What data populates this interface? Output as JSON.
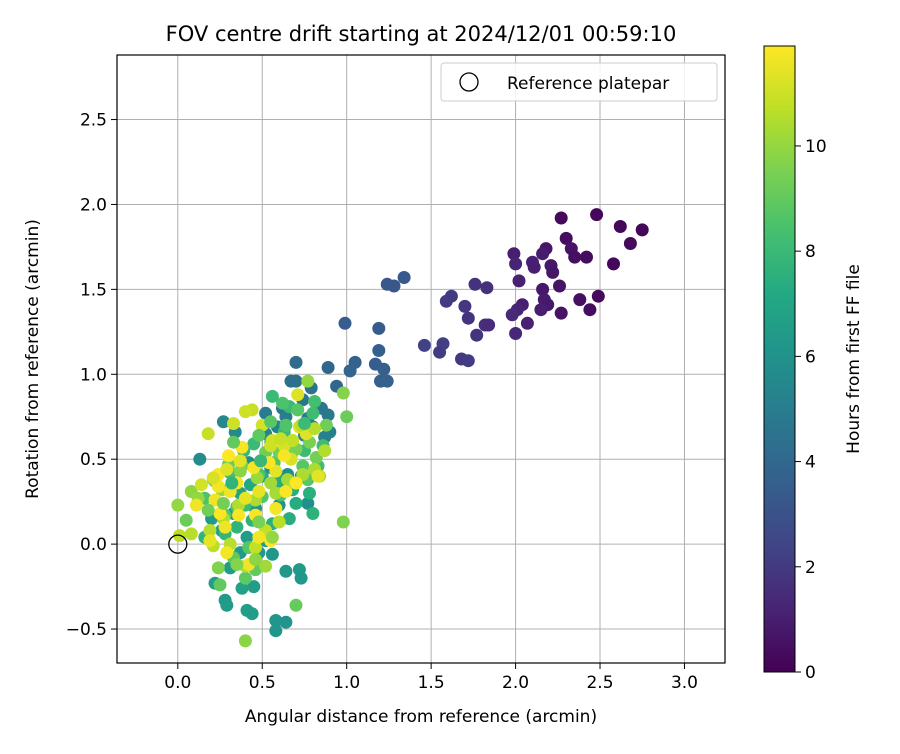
{
  "chart_data": {
    "type": "scatter",
    "title": "FOV centre drift starting at 2024/12/01 00:59:10",
    "xlabel": "Angular distance from reference (arcmin)",
    "ylabel": "Rotation from reference (arcmin)",
    "xlim": [
      -0.36,
      3.24
    ],
    "ylim": [
      -0.7,
      2.88
    ],
    "xticks": [
      0.0,
      0.5,
      1.0,
      1.5,
      2.0,
      2.5,
      3.0
    ],
    "xtick_labels": [
      "0.0",
      "0.5",
      "1.0",
      "1.5",
      "2.0",
      "2.5",
      "3.0"
    ],
    "yticks": [
      -0.5,
      0.0,
      0.5,
      1.0,
      1.5,
      2.0,
      2.5
    ],
    "ytick_labels": [
      "−0.5",
      "0.0",
      "0.5",
      "1.0",
      "1.5",
      "2.0",
      "2.5"
    ],
    "grid": true,
    "legend": {
      "placement": "top-right",
      "entries": [
        "Reference platepar"
      ]
    },
    "reference_point": {
      "x": 0.0,
      "y": 0.0,
      "label": "Reference platepar"
    },
    "colorbar": {
      "label": "Hours from first FF file",
      "range": [
        0,
        11.9
      ],
      "ticks": [
        0,
        2,
        4,
        6,
        8,
        10
      ],
      "tick_labels": [
        "0",
        "2",
        "4",
        "6",
        "8",
        "10"
      ],
      "colormap": "viridis"
    },
    "points": [
      [
        2.48,
        1.94,
        0.2
      ],
      [
        2.27,
        1.92,
        0.3
      ],
      [
        2.62,
        1.87,
        0.2
      ],
      [
        2.75,
        1.85,
        0.2
      ],
      [
        2.3,
        1.8,
        0.4
      ],
      [
        2.68,
        1.77,
        0.3
      ],
      [
        2.33,
        1.74,
        0.6
      ],
      [
        2.18,
        1.74,
        0.7
      ],
      [
        2.16,
        1.71,
        0.9
      ],
      [
        1.99,
        1.71,
        1.0
      ],
      [
        2.35,
        1.69,
        0.5
      ],
      [
        2.42,
        1.69,
        0.4
      ],
      [
        2.1,
        1.66,
        1.1
      ],
      [
        2.58,
        1.65,
        0.2
      ],
      [
        2.0,
        1.65,
        1.2
      ],
      [
        2.21,
        1.64,
        0.8
      ],
      [
        2.11,
        1.63,
        1.0
      ],
      [
        2.22,
        1.6,
        0.7
      ],
      [
        2.02,
        1.55,
        1.1
      ],
      [
        2.26,
        1.52,
        0.6
      ],
      [
        2.16,
        1.5,
        0.8
      ],
      [
        2.49,
        1.46,
        0.3
      ],
      [
        2.38,
        1.44,
        0.5
      ],
      [
        2.17,
        1.44,
        0.9
      ],
      [
        2.04,
        1.41,
        1.0
      ],
      [
        2.19,
        1.41,
        0.8
      ],
      [
        2.15,
        1.38,
        1.0
      ],
      [
        2.44,
        1.38,
        0.4
      ],
      [
        2.01,
        1.38,
        1.2
      ],
      [
        2.27,
        1.36,
        0.6
      ],
      [
        1.98,
        1.35,
        1.4
      ],
      [
        2.07,
        1.3,
        1.1
      ],
      [
        2.0,
        1.24,
        1.3
      ],
      [
        1.82,
        1.29,
        1.6
      ],
      [
        1.84,
        1.29,
        1.5
      ],
      [
        1.77,
        1.23,
        1.8
      ],
      [
        1.76,
        1.53,
        1.7
      ],
      [
        1.83,
        1.51,
        1.6
      ],
      [
        1.62,
        1.46,
        2.0
      ],
      [
        1.59,
        1.43,
        2.1
      ],
      [
        1.7,
        1.4,
        1.9
      ],
      [
        1.72,
        1.33,
        1.8
      ],
      [
        1.46,
        1.17,
        2.3
      ],
      [
        1.57,
        1.18,
        2.2
      ],
      [
        1.55,
        1.13,
        2.1
      ],
      [
        1.68,
        1.09,
        2.0
      ],
      [
        1.72,
        1.08,
        2.1
      ],
      [
        1.34,
        1.57,
        3.3
      ],
      [
        1.24,
        1.53,
        3.2
      ],
      [
        1.28,
        1.52,
        3.2
      ],
      [
        0.99,
        1.3,
        3.5
      ],
      [
        1.19,
        1.27,
        3.4
      ],
      [
        1.19,
        1.14,
        3.6
      ],
      [
        1.05,
        1.07,
        3.7
      ],
      [
        1.17,
        1.06,
        3.5
      ],
      [
        1.22,
        1.03,
        3.6
      ],
      [
        1.02,
        1.02,
        3.8
      ],
      [
        1.2,
        0.96,
        3.6
      ],
      [
        1.24,
        0.96,
        3.7
      ],
      [
        0.94,
        0.93,
        3.9
      ],
      [
        0.89,
        1.04,
        3.9
      ],
      [
        0.7,
        1.07,
        4.2
      ],
      [
        0.67,
        0.96,
        4.3
      ],
      [
        0.7,
        0.96,
        4.4
      ],
      [
        0.79,
        0.92,
        4.5
      ],
      [
        0.74,
        0.85,
        4.6
      ],
      [
        0.85,
        0.8,
        4.6
      ],
      [
        0.89,
        0.76,
        4.7
      ],
      [
        0.62,
        0.8,
        4.8
      ],
      [
        0.52,
        0.77,
        4.9
      ],
      [
        0.64,
        0.75,
        5.0
      ],
      [
        0.77,
        0.74,
        5.0
      ],
      [
        0.8,
        0.69,
        5.1
      ],
      [
        0.9,
        0.66,
        5.2
      ],
      [
        0.27,
        0.72,
        5.5
      ],
      [
        0.59,
        0.69,
        5.3
      ],
      [
        0.75,
        0.64,
        5.3
      ],
      [
        0.87,
        0.63,
        5.2
      ],
      [
        0.34,
        0.66,
        5.6
      ],
      [
        0.52,
        0.65,
        5.4
      ],
      [
        0.13,
        0.5,
        5.7
      ],
      [
        0.42,
        0.48,
        5.8
      ],
      [
        0.55,
        0.45,
        5.9
      ],
      [
        0.65,
        0.41,
        5.8
      ],
      [
        0.73,
        0.4,
        6.0
      ],
      [
        0.77,
        0.24,
        5.9
      ],
      [
        0.6,
        0.23,
        6.1
      ],
      [
        0.46,
        0.21,
        6.2
      ],
      [
        0.33,
        0.18,
        6.3
      ],
      [
        0.2,
        0.15,
        6.4
      ],
      [
        0.26,
        0.08,
        6.5
      ],
      [
        0.41,
        0.04,
        6.5
      ],
      [
        0.52,
        0.02,
        6.6
      ],
      [
        0.37,
        -0.05,
        6.4
      ],
      [
        0.48,
        -0.05,
        6.3
      ],
      [
        0.56,
        -0.06,
        6.2
      ],
      [
        0.31,
        -0.14,
        6.5
      ],
      [
        0.22,
        -0.23,
        6.6
      ],
      [
        0.28,
        -0.33,
        6.4
      ],
      [
        0.29,
        -0.36,
        6.5
      ],
      [
        0.41,
        -0.39,
        6.7
      ],
      [
        0.44,
        -0.41,
        6.6
      ],
      [
        0.38,
        -0.26,
        6.8
      ],
      [
        0.45,
        -0.25,
        6.6
      ],
      [
        0.64,
        -0.16,
        6.3
      ],
      [
        0.72,
        -0.15,
        6.4
      ],
      [
        0.73,
        -0.2,
        6.3
      ],
      [
        0.58,
        -0.45,
        6.2
      ],
      [
        0.64,
        -0.46,
        6.1
      ],
      [
        0.58,
        -0.51,
        6.2
      ],
      [
        0.37,
        0.3,
        6.9
      ],
      [
        0.43,
        0.35,
        7.1
      ],
      [
        0.5,
        0.4,
        7.2
      ],
      [
        0.6,
        0.37,
        7.3
      ],
      [
        0.68,
        0.32,
        7.4
      ],
      [
        0.78,
        0.3,
        7.5
      ],
      [
        0.7,
        0.24,
        7.3
      ],
      [
        0.66,
        0.15,
        7.4
      ],
      [
        0.8,
        0.18,
        7.6
      ],
      [
        0.56,
        0.12,
        7.5
      ],
      [
        0.44,
        0.14,
        7.6
      ],
      [
        0.35,
        0.1,
        7.7
      ],
      [
        0.28,
        0.06,
        7.8
      ],
      [
        0.16,
        0.04,
        7.7
      ],
      [
        0.39,
        0.55,
        7.9
      ],
      [
        0.45,
        0.59,
        8.0
      ],
      [
        0.55,
        0.6,
        8.1
      ],
      [
        0.63,
        0.66,
        8.0
      ],
      [
        0.66,
        0.81,
        8.0
      ],
      [
        0.56,
        0.87,
        8.0
      ],
      [
        0.75,
        0.55,
        8.1
      ],
      [
        0.86,
        0.58,
        8.2
      ],
      [
        0.83,
        0.46,
        8.2
      ],
      [
        0.4,
        0.23,
        8.1
      ],
      [
        0.31,
        0.42,
        8.3
      ],
      [
        0.22,
        0.37,
        8.4
      ],
      [
        0.16,
        0.27,
        8.5
      ],
      [
        0.48,
        0.41,
        8.5
      ],
      [
        0.57,
        0.48,
        8.6
      ],
      [
        0.67,
        0.52,
        8.6
      ],
      [
        0.74,
        0.46,
        8.7
      ],
      [
        0.77,
        0.38,
        8.8
      ],
      [
        0.5,
        0.28,
        8.7
      ],
      [
        0.61,
        0.29,
        8.6
      ],
      [
        0.35,
        0.22,
        8.6
      ],
      [
        0.28,
        0.17,
        8.7
      ],
      [
        0.42,
        -0.02,
        8.8
      ],
      [
        0.33,
        -0.08,
        8.9
      ],
      [
        0.46,
        -0.15,
        9.0
      ],
      [
        0.4,
        -0.2,
        8.9
      ],
      [
        0.25,
        -0.24,
        9.0
      ],
      [
        0.7,
        -0.36,
        9.1
      ],
      [
        0.3,
        0.47,
        9.2
      ],
      [
        0.38,
        0.46,
        9.3
      ],
      [
        0.52,
        0.54,
        9.3
      ],
      [
        0.6,
        0.54,
        9.4
      ],
      [
        0.7,
        0.56,
        9.5
      ],
      [
        0.78,
        0.6,
        9.5
      ],
      [
        0.82,
        0.51,
        9.4
      ],
      [
        0.88,
        0.7,
        9.3
      ],
      [
        1.0,
        0.75,
        9.2
      ],
      [
        0.98,
        0.13,
        9.6
      ],
      [
        0.98,
        0.89,
        9.7
      ],
      [
        0.77,
        0.96,
        10.0
      ],
      [
        0.63,
        0.53,
        9.6
      ],
      [
        0.49,
        0.49,
        9.7
      ],
      [
        0.37,
        0.43,
        9.8
      ],
      [
        0.21,
        0.38,
        9.8
      ],
      [
        0.08,
        0.31,
        9.9
      ],
      [
        0.0,
        0.23,
        10.0
      ],
      [
        0.12,
        0.27,
        10.0
      ],
      [
        0.26,
        0.32,
        10.1
      ],
      [
        0.4,
        -0.57,
        9.8
      ],
      [
        0.47,
        0.39,
        10.1
      ],
      [
        0.55,
        0.36,
        10.2
      ],
      [
        0.65,
        0.38,
        10.3
      ],
      [
        0.74,
        0.41,
        10.4
      ],
      [
        0.81,
        0.44,
        10.4
      ],
      [
        0.84,
        0.4,
        10.5
      ],
      [
        0.58,
        0.3,
        10.3
      ],
      [
        0.46,
        0.26,
        10.4
      ],
      [
        0.36,
        0.23,
        10.5
      ],
      [
        0.27,
        0.15,
        10.5
      ],
      [
        0.19,
        0.08,
        10.6
      ],
      [
        0.08,
        0.06,
        10.6
      ],
      [
        0.01,
        0.05,
        10.7
      ],
      [
        0.21,
        -0.01,
        10.7
      ],
      [
        0.31,
        0.0,
        10.6
      ],
      [
        0.4,
        -0.13,
        10.5
      ],
      [
        0.46,
        -0.02,
        10.8
      ],
      [
        0.52,
        0.08,
        10.8
      ],
      [
        0.6,
        0.13,
        10.7
      ],
      [
        0.44,
        0.79,
        10.9
      ],
      [
        0.4,
        0.78,
        11.0
      ],
      [
        0.33,
        0.71,
        11.0
      ],
      [
        0.18,
        0.65,
        10.9
      ],
      [
        0.5,
        0.7,
        11.1
      ],
      [
        0.56,
        0.61,
        11.1
      ],
      [
        0.63,
        0.58,
        11.2
      ],
      [
        0.67,
        0.5,
        11.2
      ],
      [
        0.76,
        0.65,
        11.3
      ],
      [
        0.72,
        0.69,
        11.3
      ],
      [
        0.71,
        0.88,
        11.3
      ],
      [
        0.83,
        0.4,
        11.4
      ],
      [
        0.58,
        0.43,
        11.4
      ],
      [
        0.48,
        0.31,
        11.5
      ],
      [
        0.4,
        0.27,
        11.5
      ],
      [
        0.31,
        0.31,
        11.6
      ],
      [
        0.22,
        0.26,
        11.6
      ],
      [
        0.11,
        0.23,
        11.6
      ],
      [
        0.24,
        0.34,
        11.7
      ],
      [
        0.35,
        0.36,
        11.7
      ],
      [
        0.45,
        0.45,
        11.7
      ],
      [
        0.54,
        0.48,
        11.8
      ],
      [
        0.63,
        0.52,
        11.8
      ],
      [
        0.38,
        0.57,
        11.8
      ],
      [
        0.3,
        0.52,
        11.9
      ],
      [
        0.24,
        0.41,
        11.9
      ],
      [
        0.25,
        0.18,
        11.9
      ],
      [
        0.36,
        0.17,
        11.8
      ],
      [
        0.46,
        0.17,
        11.8
      ],
      [
        0.58,
        0.21,
        11.7
      ],
      [
        0.64,
        0.31,
        11.8
      ],
      [
        0.7,
        0.36,
        11.9
      ],
      [
        0.55,
        0.02,
        11.9
      ],
      [
        0.48,
        0.04,
        11.7
      ],
      [
        0.28,
        0.1,
        11.6
      ],
      [
        0.19,
        0.02,
        11.5
      ],
      [
        0.29,
        -0.05,
        11.7
      ],
      [
        0.42,
        -0.12,
        11.6
      ],
      [
        0.37,
        0.49,
        11.4
      ],
      [
        0.29,
        0.44,
        11.3
      ],
      [
        0.21,
        0.39,
        11.2
      ],
      [
        0.14,
        0.35,
        11.1
      ],
      [
        0.55,
        0.58,
        11.0
      ],
      [
        0.61,
        0.62,
        10.9
      ],
      [
        0.68,
        0.61,
        10.8
      ],
      [
        0.73,
        0.7,
        10.7
      ],
      [
        0.81,
        0.68,
        10.6
      ],
      [
        0.87,
        0.55,
        10.5
      ],
      [
        0.52,
        -0.13,
        10.2
      ],
      [
        0.56,
        0.04,
        10.0
      ],
      [
        0.46,
        -0.09,
        9.9
      ],
      [
        0.35,
        -0.12,
        9.7
      ],
      [
        0.24,
        -0.14,
        9.6
      ],
      [
        0.48,
        0.13,
        9.5
      ],
      [
        0.27,
        0.24,
        9.4
      ],
      [
        0.18,
        0.2,
        9.3
      ],
      [
        0.05,
        0.14,
        9.2
      ],
      [
        0.33,
        0.6,
        9.0
      ],
      [
        0.48,
        0.64,
        8.9
      ],
      [
        0.55,
        0.72,
        8.8
      ],
      [
        0.71,
        0.79,
        8.7
      ],
      [
        0.64,
        0.7,
        8.6
      ],
      [
        0.62,
        0.83,
        8.5
      ],
      [
        0.81,
        0.84,
        8.3
      ],
      [
        0.8,
        0.77,
        8.2
      ],
      [
        0.75,
        0.71,
        8.1
      ],
      [
        0.49,
        0.49,
        7.9
      ],
      [
        0.32,
        0.36,
        7.7
      ]
    ]
  }
}
